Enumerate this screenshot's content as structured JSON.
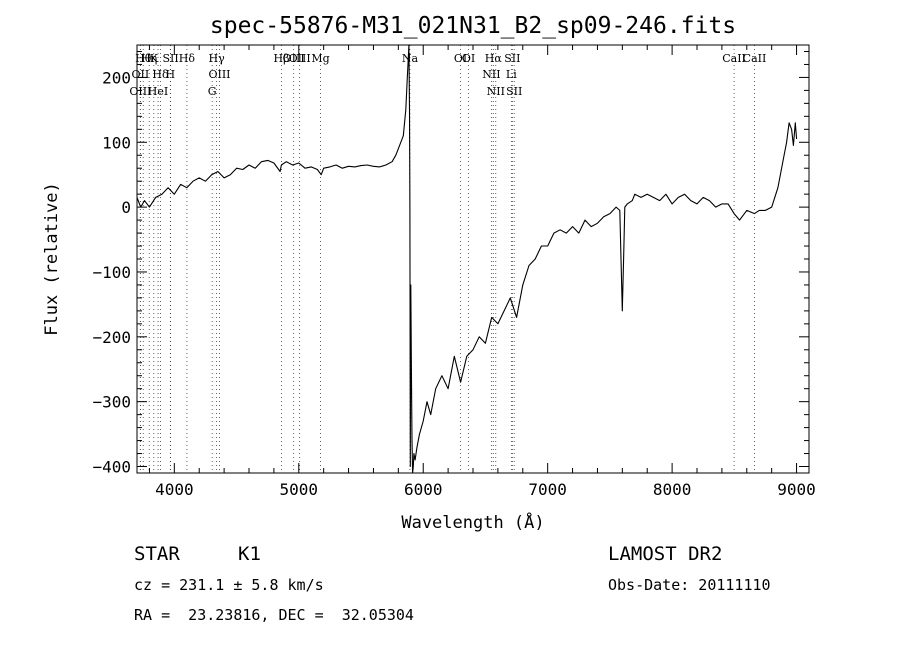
{
  "chart_data": {
    "type": "line",
    "title": "spec-55876-M31_021N31_B2_sp09-246.fits",
    "xlabel": "Wavelength (Å)",
    "ylabel": "Flux (relative)",
    "xlim": [
      3700,
      9100
    ],
    "ylim": [
      -410,
      250
    ],
    "x_ticks": [
      4000,
      5000,
      6000,
      7000,
      8000,
      9000
    ],
    "y_ticks": [
      -400,
      -300,
      -200,
      -100,
      0,
      100,
      200
    ],
    "line_color": "#000000",
    "marker_color": "#cc0000",
    "series": [
      {
        "x": [
          3700,
          3730,
          3760,
          3800,
          3850,
          3900,
          3950,
          4000,
          4050,
          4100,
          4150,
          4200,
          4250,
          4300,
          4350,
          4400,
          4450,
          4500,
          4550,
          4600,
          4650,
          4700,
          4750,
          4800,
          4850,
          4860,
          4900,
          4950,
          5000,
          5050,
          5100,
          5150,
          5180,
          5200,
          5250,
          5300,
          5350,
          5400,
          5450,
          5500,
          5550,
          5600,
          5650,
          5700,
          5750,
          5780,
          5800,
          5820,
          5840,
          5860,
          5870,
          5880,
          5885,
          5890,
          5893,
          5896,
          5900,
          5905,
          5910,
          5915,
          5920,
          5925,
          5935,
          5950,
          5970,
          6000,
          6030,
          6060,
          6100,
          6150,
          6200,
          6250,
          6300,
          6350,
          6400,
          6450,
          6500,
          6550,
          6600,
          6650,
          6700,
          6750,
          6800,
          6850,
          6900,
          6950,
          7000,
          7050,
          7100,
          7150,
          7200,
          7250,
          7300,
          7350,
          7400,
          7450,
          7500,
          7550,
          7580,
          7600,
          7610,
          7620,
          7640,
          7680,
          7700,
          7750,
          7800,
          7850,
          7900,
          7950,
          8000,
          8050,
          8100,
          8150,
          8200,
          8250,
          8300,
          8350,
          8400,
          8450,
          8498,
          8542,
          8600,
          8662,
          8700,
          8750,
          8800,
          8850,
          8900,
          8920,
          8940,
          8960,
          8975,
          8990,
          9000
        ],
        "y": [
          15,
          0,
          10,
          0,
          15,
          20,
          30,
          20,
          35,
          30,
          40,
          45,
          40,
          50,
          55,
          45,
          50,
          60,
          58,
          65,
          60,
          70,
          72,
          68,
          55,
          65,
          70,
          65,
          68,
          60,
          62,
          58,
          50,
          60,
          62,
          65,
          60,
          63,
          62,
          64,
          65,
          63,
          62,
          65,
          70,
          80,
          90,
          100,
          110,
          150,
          190,
          230,
          250,
          150,
          0,
          -400,
          -120,
          -250,
          -360,
          -410,
          -400,
          -380,
          -390,
          -370,
          -350,
          -330,
          -300,
          -320,
          -280,
          -260,
          -280,
          -230,
          -270,
          -230,
          -220,
          -200,
          -210,
          -170,
          -180,
          -160,
          -140,
          -170,
          -120,
          -90,
          -80,
          -60,
          -60,
          -40,
          -35,
          -40,
          -30,
          -40,
          -20,
          -30,
          -25,
          -15,
          -10,
          0,
          -5,
          -160,
          -80,
          0,
          5,
          10,
          20,
          15,
          20,
          15,
          10,
          20,
          5,
          15,
          20,
          10,
          5,
          15,
          10,
          0,
          5,
          5,
          -10,
          -20,
          -5,
          -10,
          -5,
          -5,
          0,
          30,
          80,
          100,
          130,
          120,
          95,
          130,
          105
        ]
      }
    ],
    "lines": [
      {
        "x": 3750,
        "label": "Hθ"
      },
      {
        "x": 3835,
        "label": "K"
      },
      {
        "x": 3889,
        "label": "Hδ"
      },
      {
        "x": 3727,
        "label": "OII"
      },
      {
        "x": 3869,
        "label": "HeI"
      },
      {
        "x": 3970,
        "label": "SII"
      },
      {
        "x": 3727,
        "label": "OIII"
      },
      {
        "x": 3798,
        "label": "Hη"
      },
      {
        "x": 3968,
        "label": "H"
      },
      {
        "x": 4101,
        "label": "Hδ"
      },
      {
        "x": 4340,
        "label": "Hγ"
      },
      {
        "x": 4363,
        "label": "OIII"
      },
      {
        "x": 4304,
        "label": "G"
      },
      {
        "x": 4861,
        "label": "Hβ"
      },
      {
        "x": 4959,
        "label": "OIII"
      },
      {
        "x": 5007,
        "label": "OIII"
      },
      {
        "x": 5175,
        "label": "Mg"
      },
      {
        "x": 5893,
        "label": "Na"
      },
      {
        "x": 6300,
        "label": "OI"
      },
      {
        "x": 6364,
        "label": "OI"
      },
      {
        "x": 6563,
        "label": "Hα"
      },
      {
        "x": 6548,
        "label": "NII"
      },
      {
        "x": 6583,
        "label": "NII"
      },
      {
        "x": 6716,
        "label": "SII"
      },
      {
        "x": 6708,
        "label": "Li"
      },
      {
        "x": 6731,
        "label": "SII"
      },
      {
        "x": 8498,
        "label": "CaII"
      },
      {
        "x": 8662,
        "label": "CaII"
      }
    ]
  },
  "info": {
    "object_class": "STAR",
    "subclass": "K1",
    "survey": "LAMOST DR2",
    "redshift": "cz = 231.1 ± 5.8 km/s",
    "obs_date": "Obs-Date: 20111110",
    "coords": "RA =  23.23816, DEC =  32.05304"
  }
}
